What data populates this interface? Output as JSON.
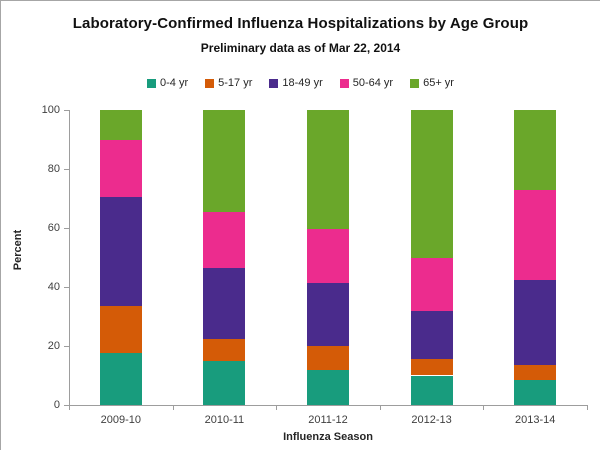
{
  "chart": {
    "title": "Laboratory-Confirmed Influenza Hospitalizations by Age Group",
    "subtitle": "Preliminary data as of Mar 22, 2014"
  },
  "chart_data": {
    "type": "bar",
    "stacked": true,
    "title": "Laboratory-Confirmed Influenza Hospitalizations by Age Group",
    "subtitle": "Preliminary data as of Mar 22, 2014",
    "xlabel": "Influenza Season",
    "ylabel": "Percent",
    "categories": [
      "2009-10",
      "2010-11",
      "2011-12",
      "2012-13",
      "2013-14"
    ],
    "series": [
      {
        "name": "0-4 yr",
        "color": "#189C7D",
        "values": [
          17.5,
          15.0,
          12.0,
          10.0,
          8.5
        ]
      },
      {
        "name": "5-17 yr",
        "color": "#D45B07",
        "values": [
          16.0,
          7.5,
          8.0,
          5.5,
          5.0
        ]
      },
      {
        "name": "18-49 yr",
        "color": "#4A2B8C",
        "values": [
          37.0,
          24.0,
          21.5,
          16.5,
          29.0
        ]
      },
      {
        "name": "50-64 yr",
        "color": "#EC2C8E",
        "values": [
          19.5,
          19.0,
          18.0,
          18.0,
          30.5
        ]
      },
      {
        "name": "65+ yr",
        "color": "#6AA72A",
        "values": [
          10.0,
          34.5,
          40.5,
          50.0,
          27.0
        ]
      }
    ],
    "ylim": [
      0,
      100
    ],
    "yticks": [
      0,
      20,
      40,
      60,
      80,
      100
    ],
    "legend_position": "top",
    "grid": false
  }
}
